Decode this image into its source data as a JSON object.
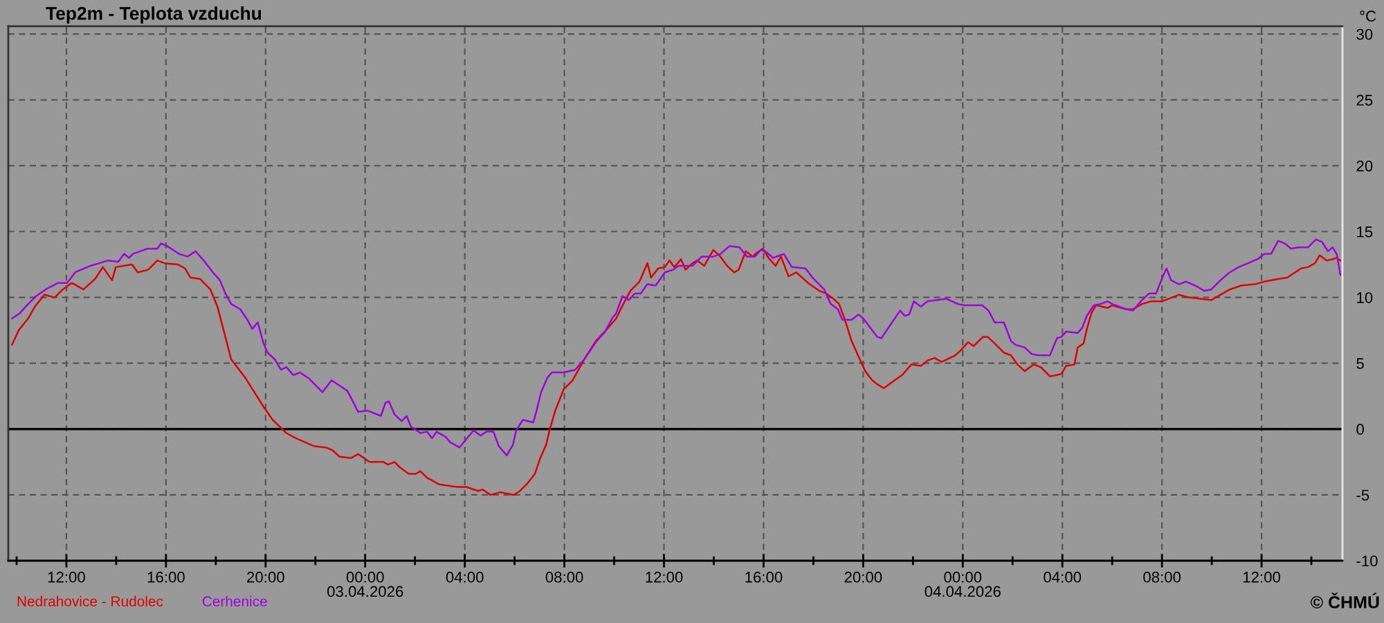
{
  "chart_data": {
    "type": "line",
    "title": "Tep2m - Teplota vzduchu",
    "ylabel": "°C",
    "xlim": [
      "2026-04-02T09:40",
      "2026-04-04T15:15"
    ],
    "xticks": [
      {
        "value": "2026-04-02T10:00",
        "label": null
      },
      {
        "value": "2026-04-02T12:00",
        "label": "12:00"
      },
      {
        "value": "2026-04-02T14:00",
        "label": null
      },
      {
        "value": "2026-04-02T16:00",
        "label": "16:00"
      },
      {
        "value": "2026-04-02T18:00",
        "label": null
      },
      {
        "value": "2026-04-02T20:00",
        "label": "20:00"
      },
      {
        "value": "2026-04-02T22:00",
        "label": null
      },
      {
        "value": "2026-04-03T00:00",
        "label": "00:00\n03.04.2026"
      },
      {
        "value": "2026-04-03T02:00",
        "label": null
      },
      {
        "value": "2026-04-03T04:00",
        "label": "04:00"
      },
      {
        "value": "2026-04-03T06:00",
        "label": null
      },
      {
        "value": "2026-04-03T08:00",
        "label": "08:00"
      },
      {
        "value": "2026-04-03T10:00",
        "label": null
      },
      {
        "value": "2026-04-03T12:00",
        "label": "12:00"
      },
      {
        "value": "2026-04-03T14:00",
        "label": null
      },
      {
        "value": "2026-04-03T16:00",
        "label": "16:00"
      },
      {
        "value": "2026-04-03T18:00",
        "label": null
      },
      {
        "value": "2026-04-03T20:00",
        "label": "20:00"
      },
      {
        "value": "2026-04-03T22:00",
        "label": null
      },
      {
        "value": "2026-04-04T00:00",
        "label": "00:00\n04.04.2026"
      },
      {
        "value": "2026-04-04T02:00",
        "label": null
      },
      {
        "value": "2026-04-04T04:00",
        "label": "04:00"
      },
      {
        "value": "2026-04-04T06:00",
        "label": null
      },
      {
        "value": "2026-04-04T08:00",
        "label": "08:00"
      },
      {
        "value": "2026-04-04T10:00",
        "label": null
      },
      {
        "value": "2026-04-04T12:00",
        "label": "12:00"
      },
      {
        "value": "2026-04-04T14:00",
        "label": null
      }
    ],
    "ylim": [
      -10,
      30.6
    ],
    "yticks": [
      -10,
      -5,
      0,
      5,
      10,
      15,
      20,
      25,
      30
    ],
    "grid": true,
    "legend": "bottom left",
    "line_style": "solid",
    "ref_lines": [
      {
        "axis": "y",
        "value": 0,
        "color": "#000000"
      }
    ],
    "annotations": [
      "© ČHMÚ"
    ],
    "series": [
      {
        "name": "Nedrahovice - Rudolec",
        "color": "#e00000",
        "x": [
          "2026-04-02T09:49",
          "2026-04-02T10:05",
          "2026-04-02T10:28",
          "2026-04-02T10:44",
          "2026-04-02T11:07",
          "2026-04-02T11:32",
          "2026-04-02T11:51",
          "2026-04-02T12:13",
          "2026-04-02T12:41",
          "2026-04-02T13:09",
          "2026-04-02T13:28",
          "2026-04-02T13:50",
          "2026-04-02T13:59",
          "2026-04-02T14:38",
          "2026-04-02T14:52",
          "2026-04-02T15:17",
          "2026-04-02T15:39",
          "2026-04-02T15:56",
          "2026-04-02T16:29",
          "2026-04-02T16:46",
          "2026-04-02T16:59",
          "2026-04-02T17:22",
          "2026-04-02T17:47",
          "2026-04-02T18:04",
          "2026-04-02T18:23",
          "2026-04-02T18:37",
          "2026-04-02T19:11",
          "2026-04-02T19:33",
          "2026-04-02T19:55",
          "2026-04-02T20:17",
          "2026-04-02T20:50",
          "2026-04-02T21:13",
          "2026-04-02T21:35",
          "2026-04-02T21:57",
          "2026-04-02T22:25",
          "2026-04-02T22:41",
          "2026-04-02T22:58",
          "2026-04-02T23:26",
          "2026-04-02T23:43",
          "2026-04-02T23:57",
          "2026-04-03T00:10",
          "2026-04-03T00:44",
          "2026-04-03T00:55",
          "2026-04-03T01:11",
          "2026-04-03T01:23",
          "2026-04-03T01:45",
          "2026-04-03T02:02",
          "2026-04-03T02:13",
          "2026-04-03T02:29",
          "2026-04-03T02:58",
          "2026-04-03T03:42",
          "2026-04-03T04:04",
          "2026-04-03T04:32",
          "2026-04-03T04:43",
          "2026-04-03T05:02",
          "2026-04-03T05:25",
          "2026-04-03T05:58",
          "2026-04-03T06:13",
          "2026-04-03T06:29",
          "2026-04-03T06:49",
          "2026-04-03T07:02",
          "2026-04-03T07:16",
          "2026-04-03T07:25",
          "2026-04-03T07:38",
          "2026-04-03T07:58",
          "2026-04-03T08:20",
          "2026-04-03T08:48",
          "2026-04-03T09:16",
          "2026-04-03T09:43",
          "2026-04-03T10:05",
          "2026-04-03T10:22",
          "2026-04-03T10:39",
          "2026-04-03T11:01",
          "2026-04-03T11:12",
          "2026-04-03T11:20",
          "2026-04-03T11:29",
          "2026-04-03T11:46",
          "2026-04-03T12:02",
          "2026-04-03T12:13",
          "2026-04-03T12:25",
          "2026-04-03T12:41",
          "2026-04-03T12:52",
          "2026-04-03T13:09",
          "2026-04-03T13:20",
          "2026-04-03T13:37",
          "2026-04-03T13:59",
          "2026-04-03T14:16",
          "2026-04-03T14:32",
          "2026-04-03T14:49",
          "2026-04-03T15:00",
          "2026-04-03T15:17",
          "2026-04-03T15:34",
          "2026-04-03T15:44",
          "2026-04-03T15:58",
          "2026-04-03T16:12",
          "2026-04-03T16:29",
          "2026-04-03T16:42",
          "2026-04-03T17:00",
          "2026-04-03T17:19",
          "2026-04-03T17:47",
          "2026-04-03T18:14",
          "2026-04-03T18:31",
          "2026-04-03T18:48",
          "2026-04-03T19:02",
          "2026-04-03T19:16",
          "2026-04-03T19:32",
          "2026-04-03T19:49",
          "2026-04-03T20:05",
          "2026-04-03T20:22",
          "2026-04-03T20:34",
          "2026-04-03T20:50",
          "2026-04-03T21:20",
          "2026-04-03T21:34",
          "2026-04-03T21:56",
          "2026-04-03T22:19",
          "2026-04-03T22:35",
          "2026-04-03T22:52",
          "2026-04-03T23:09",
          "2026-04-03T23:42",
          "2026-04-03T23:56",
          "2026-04-04T00:13",
          "2026-04-04T00:26",
          "2026-04-04T00:49",
          "2026-04-04T01:00",
          "2026-04-04T01:17",
          "2026-04-04T01:39",
          "2026-04-04T01:56",
          "2026-04-04T02:12",
          "2026-04-04T02:29",
          "2026-04-04T02:51",
          "2026-04-04T03:08",
          "2026-04-04T03:30",
          "2026-04-04T03:47",
          "2026-04-04T03:58",
          "2026-04-04T04:09",
          "2026-04-04T04:29",
          "2026-04-04T04:37",
          "2026-04-04T04:51",
          "2026-04-04T04:59",
          "2026-04-04T05:10",
          "2026-04-04T05:21",
          "2026-04-04T05:49",
          "2026-04-04T06:00",
          "2026-04-04T06:34",
          "2026-04-04T06:50",
          "2026-04-04T07:12",
          "2026-04-04T07:34",
          "2026-04-04T08:00",
          "2026-04-04T08:41",
          "2026-04-04T09:04",
          "2026-04-04T09:31",
          "2026-04-04T09:59",
          "2026-04-04T10:21",
          "2026-04-04T10:43",
          "2026-04-04T11:11",
          "2026-04-04T11:44",
          "2026-04-04T12:07",
          "2026-04-04T12:40",
          "2026-04-04T13:02",
          "2026-04-04T13:35",
          "2026-04-04T13:52",
          "2026-04-04T14:09",
          "2026-04-04T14:20",
          "2026-04-04T14:37",
          "2026-04-04T14:51",
          "2026-04-04T15:01",
          "2026-04-04T15:10"
        ],
        "values": [
          6.4,
          7.5,
          8.4,
          9.3,
          10.2,
          10.0,
          10.6,
          11.1,
          10.6,
          11.4,
          12.3,
          11.3,
          12.3,
          12.5,
          11.9,
          12.1,
          12.8,
          12.6,
          12.5,
          12.2,
          11.5,
          11.4,
          10.6,
          9.3,
          7.0,
          5.3,
          3.9,
          2.8,
          1.7,
          0.7,
          -0.3,
          -0.7,
          -1.0,
          -1.3,
          -1.4,
          -1.6,
          -2.1,
          -2.2,
          -1.9,
          -2.2,
          -2.5,
          -2.5,
          -2.7,
          -2.5,
          -2.9,
          -3.4,
          -3.4,
          -3.2,
          -3.7,
          -4.2,
          -4.4,
          -4.4,
          -4.7,
          -4.6,
          -5.0,
          -4.8,
          -5.0,
          -4.7,
          -4.2,
          -3.4,
          -2.2,
          -1.2,
          0.0,
          1.4,
          3.0,
          3.7,
          5.3,
          6.7,
          7.6,
          8.4,
          9.5,
          10.5,
          11.2,
          12.0,
          12.6,
          11.5,
          12.2,
          12.3,
          12.8,
          12.3,
          12.9,
          12.1,
          12.6,
          12.8,
          12.4,
          13.6,
          13.1,
          12.4,
          11.9,
          12.1,
          13.5,
          13.1,
          13.4,
          13.7,
          13.0,
          12.4,
          13.1,
          11.6,
          11.9,
          11.1,
          10.5,
          10.3,
          9.9,
          9.5,
          8.3,
          6.7,
          5.5,
          4.4,
          3.7,
          3.4,
          3.1,
          3.8,
          4.1,
          4.9,
          4.8,
          5.2,
          5.4,
          5.1,
          5.6,
          6.0,
          6.6,
          6.3,
          7.0,
          7.0,
          6.5,
          5.8,
          5.6,
          4.9,
          4.4,
          4.9,
          4.7,
          4.0,
          4.1,
          4.2,
          4.8,
          4.9,
          6.2,
          6.5,
          7.6,
          8.8,
          9.4,
          9.2,
          9.4,
          9.1,
          9.1,
          9.5,
          9.7,
          9.7,
          10.2,
          10.0,
          9.9,
          9.8,
          10.2,
          10.6,
          10.9,
          11.0,
          11.2,
          11.4,
          11.5,
          12.2,
          12.3,
          12.6,
          13.2,
          12.8,
          12.9,
          13.0,
          12.8
        ]
      },
      {
        "name": "Cerhenice",
        "color": "#a000e0",
        "x": [
          "2026-04-02T09:49",
          "2026-04-02T10:08",
          "2026-04-02T10:22",
          "2026-04-02T10:47",
          "2026-04-02T11:10",
          "2026-04-02T11:40",
          "2026-04-02T12:02",
          "2026-04-02T12:21",
          "2026-04-02T12:58",
          "2026-04-02T13:20",
          "2026-04-02T13:39",
          "2026-04-02T14:05",
          "2026-04-02T14:19",
          "2026-04-02T14:31",
          "2026-04-02T14:40",
          "2026-04-02T15:15",
          "2026-04-02T15:39",
          "2026-04-02T15:48",
          "2026-04-02T16:02",
          "2026-04-02T16:32",
          "2026-04-02T16:52",
          "2026-04-02T17:11",
          "2026-04-02T17:31",
          "2026-04-02T17:53",
          "2026-04-02T18:10",
          "2026-04-02T18:23",
          "2026-04-02T18:37",
          "2026-04-02T18:59",
          "2026-04-02T19:16",
          "2026-04-02T19:28",
          "2026-04-02T19:41",
          "2026-04-02T19:55",
          "2026-04-02T20:05",
          "2026-04-02T20:22",
          "2026-04-02T20:37",
          "2026-04-02T20:50",
          "2026-04-02T21:07",
          "2026-04-02T21:23",
          "2026-04-02T21:46",
          "2026-04-02T22:17",
          "2026-04-02T22:39",
          "2026-04-02T22:58",
          "2026-04-02T23:17",
          "2026-04-02T23:32",
          "2026-04-02T23:43",
          "2026-04-03T00:05",
          "2026-04-03T00:38",
          "2026-04-03T00:49",
          "2026-04-03T00:57",
          "2026-04-03T01:11",
          "2026-04-03T01:28",
          "2026-04-03T01:40",
          "2026-04-03T01:50",
          "2026-04-03T02:13",
          "2026-04-03T02:29",
          "2026-04-03T02:41",
          "2026-04-03T02:52",
          "2026-04-03T03:14",
          "2026-04-03T03:25",
          "2026-04-03T03:47",
          "2026-04-03T04:21",
          "2026-04-03T04:38",
          "2026-04-03T04:52",
          "2026-04-03T05:09",
          "2026-04-03T05:22",
          "2026-04-03T05:41",
          "2026-04-03T05:56",
          "2026-04-03T06:04",
          "2026-04-03T06:20",
          "2026-04-03T06:45",
          "2026-04-03T06:53",
          "2026-04-03T07:04",
          "2026-04-03T07:19",
          "2026-04-03T07:30",
          "2026-04-03T07:58",
          "2026-04-03T08:26",
          "2026-04-03T08:48",
          "2026-04-03T09:16",
          "2026-04-03T09:38",
          "2026-04-03T09:55",
          "2026-04-03T10:05",
          "2026-04-03T10:20",
          "2026-04-03T10:35",
          "2026-04-03T10:50",
          "2026-04-03T11:04",
          "2026-04-03T11:20",
          "2026-04-03T11:40",
          "2026-04-03T12:02",
          "2026-04-03T12:22",
          "2026-04-03T12:35",
          "2026-04-03T13:09",
          "2026-04-03T13:31",
          "2026-04-03T13:59",
          "2026-04-03T14:16",
          "2026-04-03T14:38",
          "2026-04-03T15:02",
          "2026-04-03T15:20",
          "2026-04-03T15:39",
          "2026-04-03T15:53",
          "2026-04-03T16:04",
          "2026-04-03T16:23",
          "2026-04-03T16:49",
          "2026-04-03T17:08",
          "2026-04-03T17:41",
          "2026-04-03T17:58",
          "2026-04-03T18:26",
          "2026-04-03T18:42",
          "2026-04-03T18:59",
          "2026-04-03T19:10",
          "2026-04-03T19:32",
          "2026-04-03T19:49",
          "2026-04-03T20:00",
          "2026-04-03T20:17",
          "2026-04-03T20:34",
          "2026-04-03T20:44",
          "2026-04-03T21:01",
          "2026-04-03T21:29",
          "2026-04-03T21:40",
          "2026-04-03T21:51",
          "2026-04-03T22:02",
          "2026-04-03T22:19",
          "2026-04-03T22:35",
          "2026-04-03T22:58",
          "2026-04-03T23:20",
          "2026-04-03T23:48",
          "2026-04-04T00:04",
          "2026-04-04T00:47",
          "2026-04-04T01:02",
          "2026-04-04T01:17",
          "2026-04-04T01:39",
          "2026-04-04T01:56",
          "2026-04-04T02:07",
          "2026-04-04T02:29",
          "2026-04-04T02:46",
          "2026-04-04T03:02",
          "2026-04-04T03:30",
          "2026-04-04T03:47",
          "2026-04-04T03:58",
          "2026-04-04T04:09",
          "2026-04-04T04:37",
          "2026-04-04T04:48",
          "2026-04-04T04:59",
          "2026-04-04T05:16",
          "2026-04-04T05:32",
          "2026-04-04T05:49",
          "2026-04-04T06:00",
          "2026-04-04T06:34",
          "2026-04-04T06:50",
          "2026-04-04T07:12",
          "2026-04-04T07:29",
          "2026-04-04T07:46",
          "2026-04-04T08:02",
          "2026-04-04T08:11",
          "2026-04-04T08:22",
          "2026-04-04T08:41",
          "2026-04-04T08:58",
          "2026-04-04T09:20",
          "2026-04-04T09:42",
          "2026-04-04T09:59",
          "2026-04-04T10:21",
          "2026-04-04T10:43",
          "2026-04-04T11:05",
          "2026-04-04T11:28",
          "2026-04-04T11:50",
          "2026-04-04T12:07",
          "2026-04-04T12:23",
          "2026-04-04T12:40",
          "2026-04-04T12:56",
          "2026-04-04T13:11",
          "2026-04-04T13:30",
          "2026-04-04T13:52",
          "2026-04-04T14:11",
          "2026-04-04T14:26",
          "2026-04-04T14:40",
          "2026-04-04T14:51",
          "2026-04-04T15:01",
          "2026-04-04T15:10"
        ],
        "values": [
          8.4,
          8.8,
          9.3,
          10.1,
          10.6,
          11.1,
          11.1,
          11.9,
          12.4,
          12.6,
          12.8,
          12.7,
          13.3,
          13.0,
          13.3,
          13.7,
          13.7,
          14.1,
          13.9,
          13.3,
          13.1,
          13.5,
          12.8,
          11.9,
          11.3,
          10.3,
          9.5,
          9.1,
          8.3,
          7.6,
          8.1,
          6.5,
          5.8,
          5.3,
          4.5,
          4.7,
          4.1,
          4.3,
          3.8,
          2.8,
          3.7,
          3.3,
          2.9,
          2.0,
          1.3,
          1.4,
          1.0,
          2.0,
          2.1,
          1.1,
          0.6,
          1.0,
          0.2,
          -0.3,
          -0.2,
          -0.7,
          -0.2,
          -0.6,
          -1.0,
          -1.4,
          -0.1,
          -0.5,
          -0.2,
          -0.2,
          -1.3,
          -2.0,
          -1.2,
          -0.1,
          0.7,
          0.5,
          1.4,
          2.8,
          3.9,
          4.3,
          4.3,
          4.5,
          5.3,
          6.6,
          7.4,
          8.4,
          8.8,
          10.1,
          9.8,
          10.3,
          10.3,
          11.0,
          10.9,
          11.9,
          12.1,
          12.4,
          12.4,
          13.1,
          13.1,
          13.3,
          13.9,
          13.8,
          13.1,
          13.1,
          13.6,
          13.5,
          13.0,
          13.3,
          12.3,
          12.2,
          11.5,
          10.6,
          9.5,
          9.1,
          8.3,
          8.3,
          8.7,
          8.4,
          7.7,
          7.0,
          6.9,
          7.7,
          9.0,
          8.6,
          8.7,
          9.7,
          9.3,
          9.7,
          9.8,
          9.9,
          9.5,
          9.4,
          9.4,
          9.0,
          8.1,
          8.1,
          6.7,
          6.4,
          6.2,
          5.7,
          5.6,
          5.6,
          6.9,
          7.0,
          7.4,
          7.3,
          7.7,
          8.6,
          9.4,
          9.5,
          9.7,
          9.5,
          9.1,
          9.0,
          9.8,
          10.3,
          10.3,
          11.6,
          12.2,
          11.3,
          11.0,
          11.2,
          10.9,
          10.5,
          10.6,
          11.3,
          11.9,
          12.3,
          12.6,
          12.9,
          13.3,
          13.3,
          14.3,
          14.1,
          13.7,
          13.8,
          13.8,
          14.4,
          14.2,
          13.5,
          13.8,
          13.3,
          11.7
        ]
      }
    ]
  }
}
